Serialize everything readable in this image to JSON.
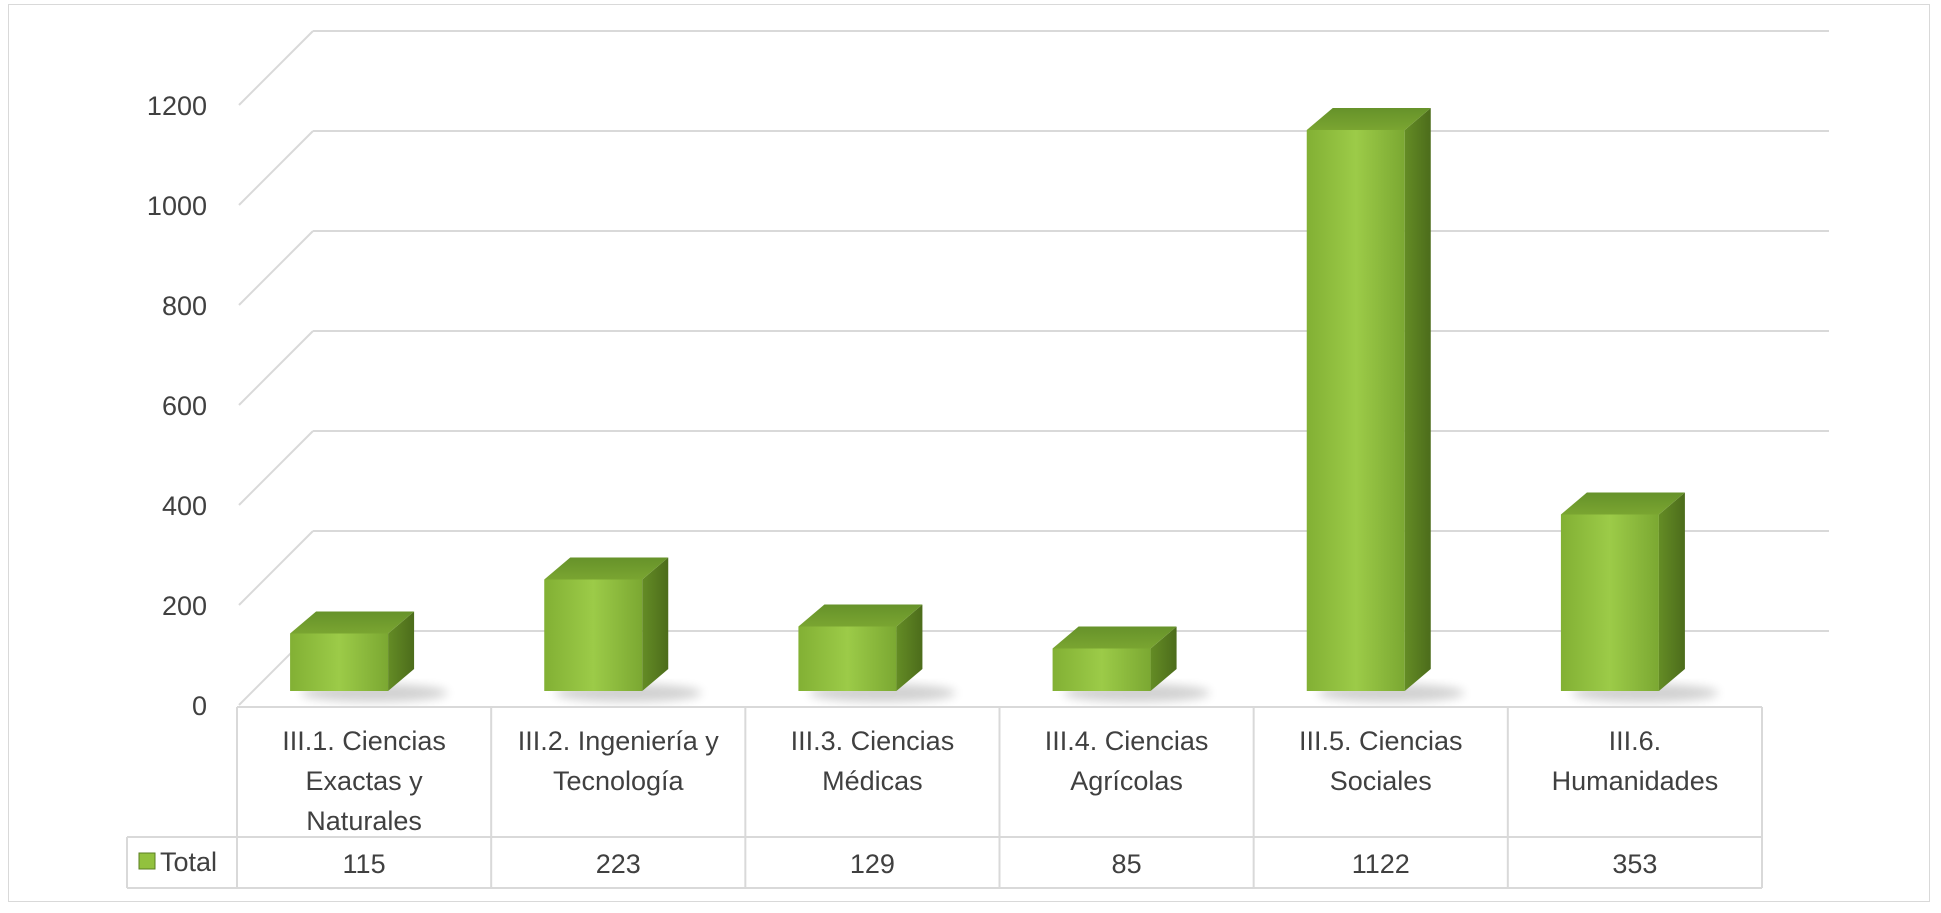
{
  "chart_data": {
    "type": "bar",
    "categories": [
      [
        "III.1. Ciencias",
        "Exactas y",
        "Naturales"
      ],
      [
        "III.2. Ingeniería y",
        "Tecnología"
      ],
      [
        "III.3. Ciencias",
        "Médicas"
      ],
      [
        "III.4. Ciencias",
        "Agrícolas"
      ],
      [
        "III.5. Ciencias",
        "Sociales"
      ],
      [
        "III.6.",
        "Humanidades"
      ]
    ],
    "series": [
      {
        "name": "Total",
        "values": [
          115,
          223,
          129,
          85,
          1122,
          353
        ]
      }
    ],
    "y_ticks": [
      "0",
      "200",
      "400",
      "600",
      "800",
      "1000",
      "1200"
    ],
    "ylim": [
      0,
      1200
    ],
    "grid": true,
    "data_table": true,
    "legend_position": "data-table",
    "colors": {
      "bar_front": "#92c13e",
      "bar_side": "#5b7f22",
      "bar_top": "#6f9a2b",
      "grid": "#d9d9d9",
      "text": "#404040"
    }
  }
}
